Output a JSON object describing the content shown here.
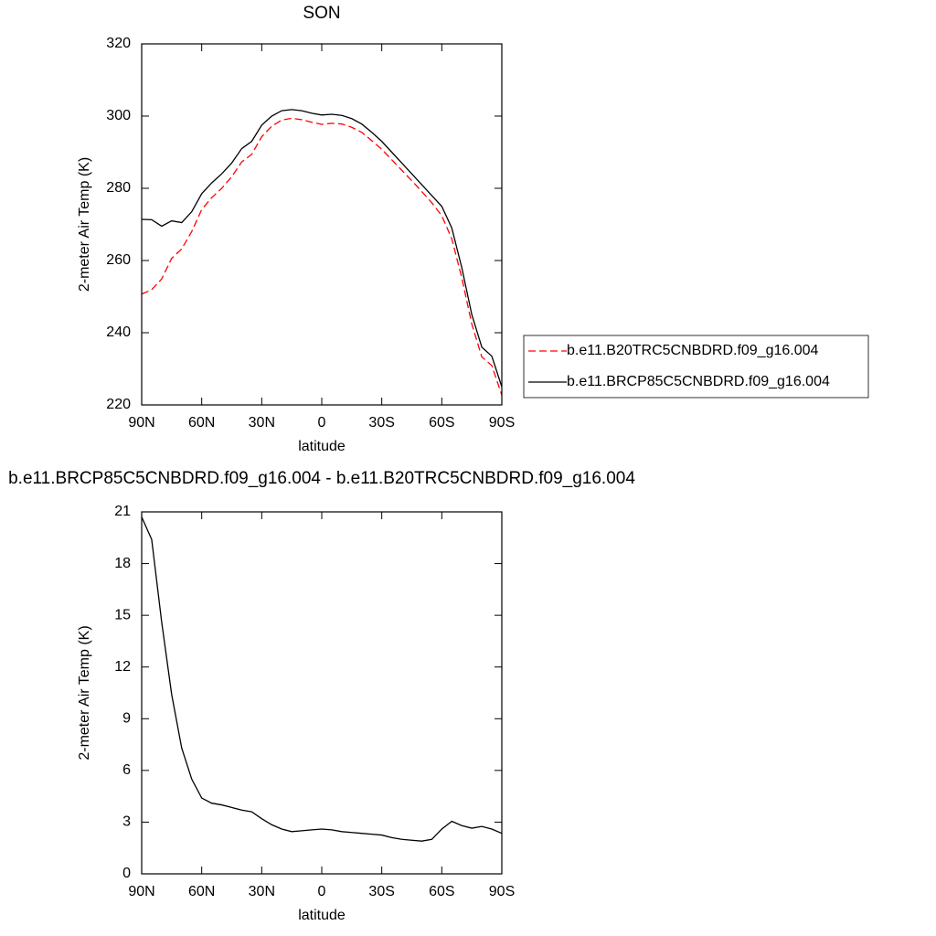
{
  "chart_data": [
    {
      "type": "line",
      "title": "SON",
      "x_label": "latitude",
      "y_label": "2-meter Air Temp (K)",
      "x": [
        90,
        85,
        80,
        75,
        70,
        65,
        60,
        55,
        50,
        45,
        40,
        35,
        30,
        25,
        20,
        15,
        10,
        5,
        0,
        -5,
        -10,
        -15,
        -20,
        -25,
        -30,
        -35,
        -40,
        -45,
        -50,
        -55,
        -60,
        -65,
        -70,
        -75,
        -80,
        -85,
        -90
      ],
      "xlim": [
        90,
        -90
      ],
      "xticks": [
        {
          "value": 90,
          "label": "90N"
        },
        {
          "value": 60,
          "label": "60N"
        },
        {
          "value": 30,
          "label": "30N"
        },
        0,
        {
          "value": -30,
          "label": "30S"
        },
        {
          "value": -60,
          "label": "60S"
        },
        {
          "value": -90,
          "label": "90S"
        }
      ],
      "ylim": [
        220,
        320
      ],
      "yticks": [
        220,
        240,
        260,
        280,
        300,
        320
      ],
      "legend_position": "right",
      "series": [
        {
          "name": "b.e11.B20TRC5CNBDRD.f09_g16.004",
          "color": "#ff0000",
          "line_style": "dashed",
          "values": [
            250.7,
            251.9,
            254.9,
            260.6,
            263.2,
            268,
            274.1,
            277.4,
            280,
            283.2,
            287.3,
            289.4,
            294.3,
            297.2,
            298.9,
            299.4,
            299,
            298.3,
            297.7,
            298,
            297.8,
            296.9,
            295.5,
            293.2,
            290.8,
            287.9,
            285,
            282.1,
            279.1,
            276,
            272.4,
            266,
            255.2,
            242.4,
            233.3,
            230.9,
            222.7
          ]
        },
        {
          "name": "b.e11.BRCP85C5CNBDRD.f09_g16.004",
          "color": "#000000",
          "line_style": "solid",
          "values": [
            271.4,
            271.3,
            269.5,
            271,
            270.5,
            273.5,
            278.5,
            281.5,
            284,
            287,
            291,
            293,
            297.5,
            300,
            301.5,
            301.8,
            301.5,
            300.8,
            300.3,
            300.5,
            300.2,
            299.3,
            297.8,
            295.5,
            293,
            290,
            287,
            284,
            281,
            278,
            275,
            269,
            258,
            245,
            236,
            233.5,
            225
          ]
        }
      ]
    },
    {
      "type": "line",
      "title": "b.e11.BRCP85C5CNBDRD.f09_g16.004 - b.e11.B20TRC5CNBDRD.f09_g16.004",
      "x_label": "latitude",
      "y_label": "2-meter Air Temp (K)",
      "x": [
        90,
        85,
        80,
        75,
        70,
        65,
        60,
        55,
        50,
        45,
        40,
        35,
        30,
        25,
        20,
        15,
        10,
        5,
        0,
        -5,
        -10,
        -15,
        -20,
        -25,
        -30,
        -35,
        -40,
        -45,
        -50,
        -55,
        -60,
        -65,
        -70,
        -75,
        -80,
        -85,
        -90
      ],
      "xlim": [
        90,
        -90
      ],
      "xticks": [
        {
          "value": 90,
          "label": "90N"
        },
        {
          "value": 60,
          "label": "60N"
        },
        {
          "value": 30,
          "label": "30N"
        },
        0,
        {
          "value": -30,
          "label": "30S"
        },
        {
          "value": -60,
          "label": "60S"
        },
        {
          "value": -90,
          "label": "90S"
        }
      ],
      "ylim": [
        0,
        21
      ],
      "yticks": [
        0,
        3,
        6,
        9,
        12,
        15,
        18,
        21
      ],
      "series": [
        {
          "color": "#000000",
          "line_style": "solid",
          "values": [
            20.7,
            19.4,
            14.6,
            10.4,
            7.3,
            5.5,
            4.4,
            4.1,
            4,
            3.85,
            3.7,
            3.6,
            3.2,
            2.85,
            2.6,
            2.45,
            2.5,
            2.55,
            2.6,
            2.55,
            2.45,
            2.4,
            2.35,
            2.3,
            2.25,
            2.1,
            2,
            1.95,
            1.9,
            2,
            2.6,
            3.05,
            2.8,
            2.65,
            2.75,
            2.6,
            2.35
          ]
        }
      ]
    }
  ]
}
